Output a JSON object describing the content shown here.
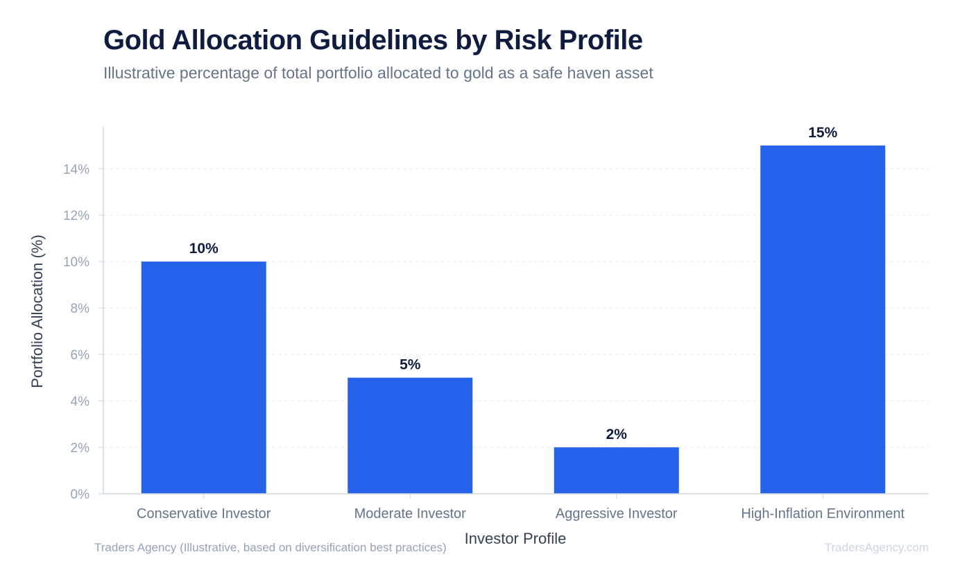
{
  "header": {
    "title": "Gold Allocation Guidelines by Risk Profile",
    "subtitle": "Illustrative percentage of total portfolio allocated to gold as a safe haven asset"
  },
  "footer": {
    "source": "Traders Agency (Illustrative, based on diversification best practices)",
    "brand": "TradersAgency.com"
  },
  "colors": {
    "bar": "#2563eb",
    "grid": "#e5e7eb",
    "axis": "#cbd5e1"
  },
  "chart_data": {
    "type": "bar",
    "title": "Gold Allocation Guidelines by Risk Profile",
    "subtitle": "Illustrative percentage of total portfolio allocated to gold as a safe haven asset",
    "xlabel": "Investor Profile",
    "ylabel": "Portfolio Allocation (%)",
    "categories": [
      "Conservative Investor",
      "Moderate Investor",
      "Aggressive Investor",
      "High-Inflation Environment"
    ],
    "values": [
      10,
      5,
      2,
      15
    ],
    "data_labels": [
      "10%",
      "5%",
      "2%",
      "15%"
    ],
    "ylim": [
      0,
      15.8
    ],
    "yticks": [
      0,
      2,
      4,
      6,
      8,
      10,
      12,
      14
    ],
    "ytick_labels": [
      "0%",
      "2%",
      "4%",
      "6%",
      "8%",
      "10%",
      "12%",
      "14%"
    ],
    "grid": true,
    "legend": "none"
  }
}
